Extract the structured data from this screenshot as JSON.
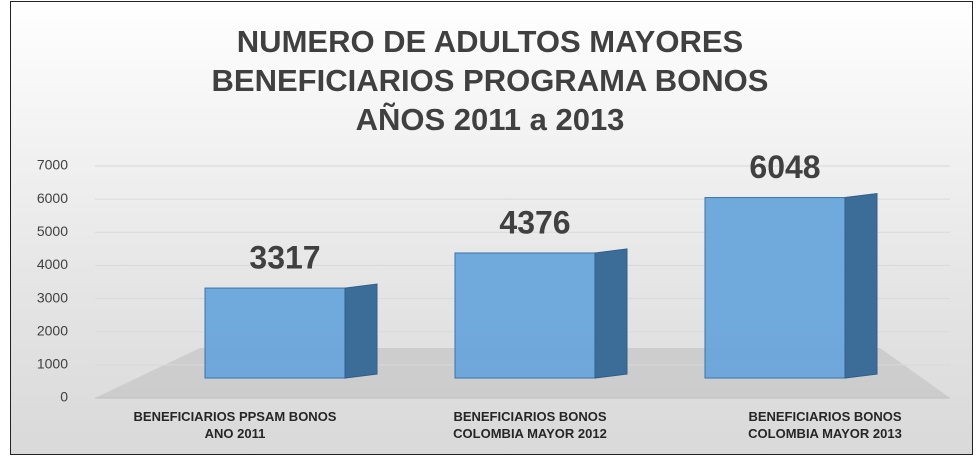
{
  "chart_data": {
    "type": "bar3d",
    "title": "NUMERO DE ADULTOS MAYORES BENEFICIARIOS PROGRAMA BONOS AÑOS 2011 a 2013",
    "categories": [
      "BENEFICIARIOS PPSAM BONOS ANO 2011",
      "BENEFICIARIOS BONOS COLOMBIA MAYOR 2012",
      "BENEFICIARIOS BONOS COLOMBIA MAYOR 2013"
    ],
    "values": [
      3317,
      4376,
      6048
    ],
    "color": "#6aa6dc",
    "ylim": [
      0,
      7000
    ],
    "yticks": [
      0,
      1000,
      2000,
      3000,
      4000,
      5000,
      6000,
      7000
    ],
    "grid": true
  }
}
